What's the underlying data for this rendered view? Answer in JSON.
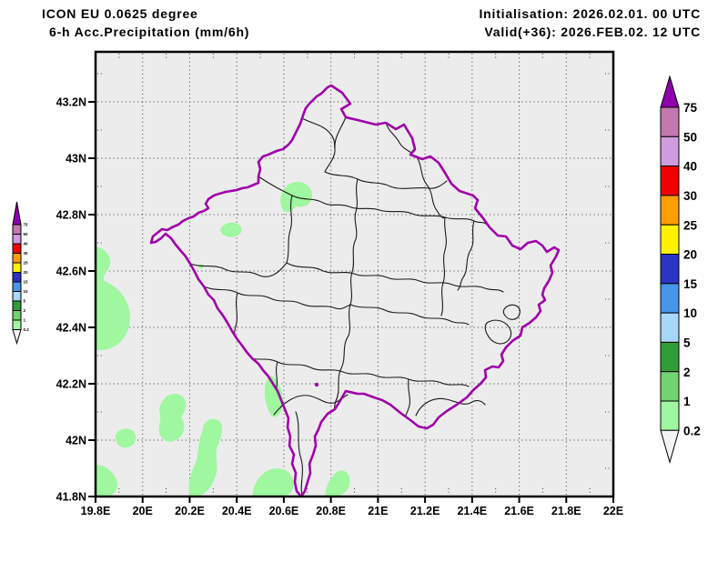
{
  "header": {
    "line1": "ICON EU 0.0625 degree",
    "line2": "6-h Acc.Precipitation (mm/6h)",
    "init": "Initialisation: 2026.02.01. 00 UTC",
    "valid": "Valid(+36): 2026.FEB.02. 12 UTC"
  },
  "axes": {
    "x_ticks": [
      {
        "lon": 19.8,
        "label": "19.8E"
      },
      {
        "lon": 20.0,
        "label": "20E"
      },
      {
        "lon": 20.2,
        "label": "20.2E"
      },
      {
        "lon": 20.4,
        "label": "20.4E"
      },
      {
        "lon": 20.6,
        "label": "20.6E"
      },
      {
        "lon": 20.8,
        "label": "20.8E"
      },
      {
        "lon": 21.0,
        "label": "21E"
      },
      {
        "lon": 21.2,
        "label": "21.2E"
      },
      {
        "lon": 21.4,
        "label": "21.4E"
      },
      {
        "lon": 21.6,
        "label": "21.6E"
      },
      {
        "lon": 21.8,
        "label": "21.8E"
      },
      {
        "lon": 22.0,
        "label": "22E"
      }
    ],
    "y_ticks": [
      {
        "lat": 41.8,
        "label": "41.8N"
      },
      {
        "lat": 42.0,
        "label": "42N"
      },
      {
        "lat": 42.2,
        "label": "42.2N"
      },
      {
        "lat": 42.4,
        "label": "42.4N"
      },
      {
        "lat": 42.6,
        "label": "42.6N"
      },
      {
        "lat": 42.8,
        "label": "42.8N"
      },
      {
        "lat": 43.0,
        "label": "43N"
      },
      {
        "lat": 43.2,
        "label": "43.2N"
      }
    ]
  },
  "legend": {
    "levels": [
      "75",
      "50",
      "40",
      "30",
      "25",
      "20",
      "15",
      "10",
      "5",
      "2",
      "1",
      "0.2"
    ],
    "band_colors": [
      "#c478ae",
      "#cf9ce0",
      "#f20000",
      "#ff9e00",
      "#fff200",
      "#2c34c8",
      "#4696ea",
      "#a8d8f8",
      "#2f9e38",
      "#70d470",
      "#9ff79f"
    ],
    "overflow_color": "#8d00ac",
    "underflow_color": "#f4f4f4"
  },
  "map": {
    "plot_bg": "#ececec",
    "border_color": "#a000aa",
    "district_line_color": "#1a1a1a",
    "precip_fill": "#9ff79f"
  }
}
